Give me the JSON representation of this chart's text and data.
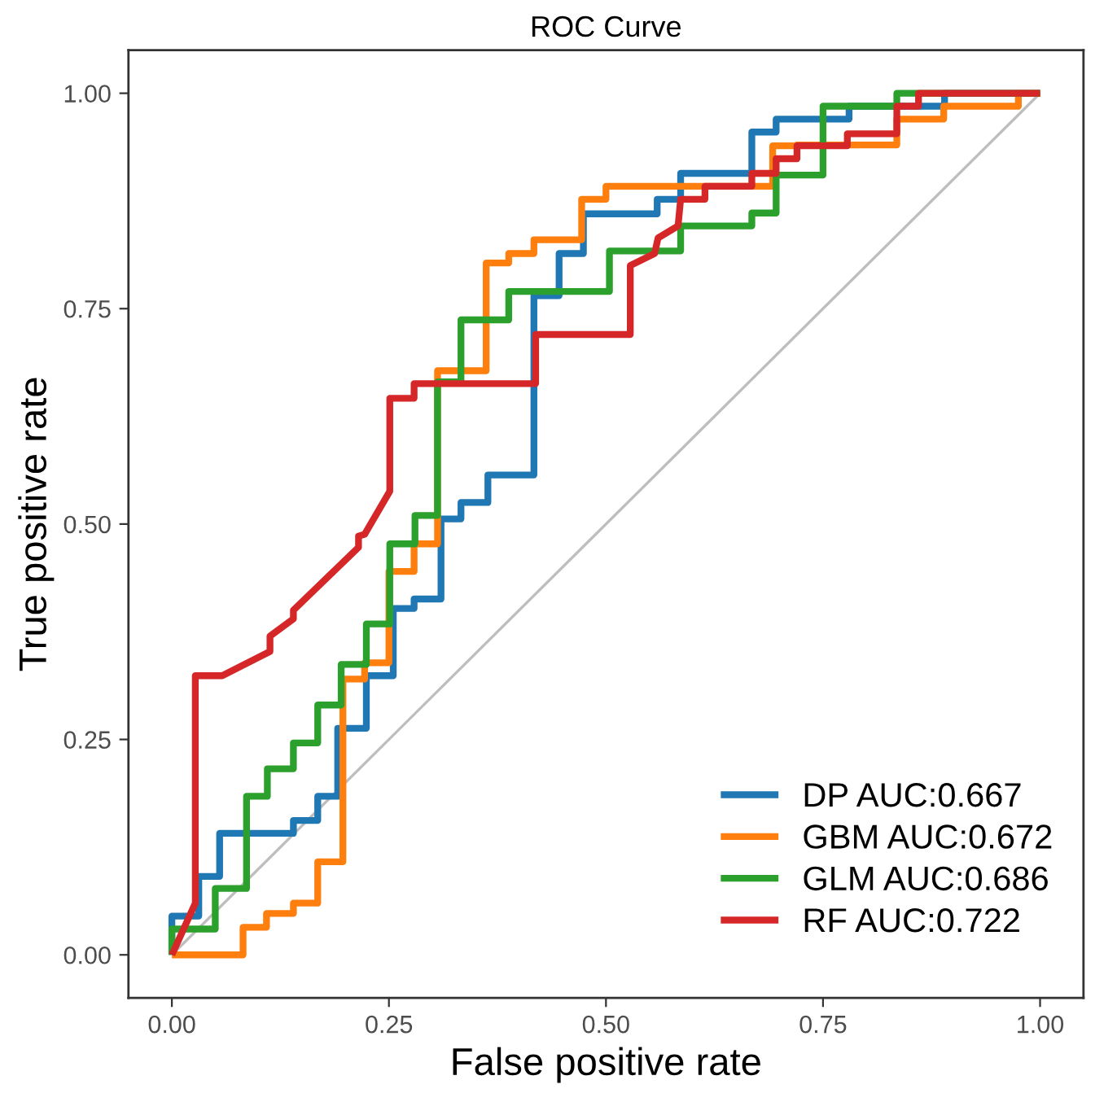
{
  "chart_data": {
    "type": "line",
    "title": "ROC Curve",
    "xlabel": "False positive rate",
    "ylabel": "True positive rate",
    "xlim": [
      -0.05,
      1.05
    ],
    "ylim": [
      -0.05,
      1.05
    ],
    "xticks": [
      {
        "value": 0,
        "label": "0.00"
      },
      {
        "value": 0.25,
        "label": "0.25"
      },
      {
        "value": 0.5,
        "label": "0.50"
      },
      {
        "value": 0.75,
        "label": "0.75"
      },
      {
        "value": 1,
        "label": "1.00"
      }
    ],
    "yticks": [
      {
        "value": 0,
        "label": "0.00"
      },
      {
        "value": 0.25,
        "label": "0.25"
      },
      {
        "value": 0.5,
        "label": "0.50"
      },
      {
        "value": 0.75,
        "label": "0.75"
      },
      {
        "value": 1,
        "label": "1.00"
      }
    ],
    "grid": false,
    "legend": "bottom right",
    "marker": "none",
    "line_style": "solid",
    "series": [
      {
        "color": "#bebebe",
        "x": [
          0,
          1
        ],
        "values": [
          0,
          1
        ]
      },
      {
        "name": "DP AUC:0.667",
        "color": "#1f77b4",
        "x": [
          0,
          0,
          0.031,
          0.031,
          0.055,
          0.055,
          0.14,
          0.14,
          0.168,
          0.168,
          0.191,
          0.191,
          0.224,
          0.224,
          0.255,
          0.255,
          0.279,
          0.279,
          0.31,
          0.31,
          0.333,
          0.333,
          0.364,
          0.364,
          0.417,
          0.417,
          0.446,
          0.446,
          0.474,
          0.474,
          0.559,
          0.559,
          0.586,
          0.586,
          0.668,
          0.668,
          0.696,
          0.696,
          0.78,
          0.78,
          0.89,
          0.89,
          1
        ],
        "values": [
          0,
          0.045,
          0.045,
          0.091,
          0.091,
          0.141,
          0.141,
          0.156,
          0.156,
          0.184,
          0.184,
          0.263,
          0.263,
          0.324,
          0.324,
          0.402,
          0.402,
          0.413,
          0.413,
          0.506,
          0.506,
          0.525,
          0.525,
          0.557,
          0.557,
          0.765,
          0.765,
          0.814,
          0.814,
          0.86,
          0.86,
          0.877,
          0.877,
          0.907,
          0.907,
          0.955,
          0.955,
          0.97,
          0.97,
          0.985,
          0.985,
          1,
          1
        ]
      },
      {
        "name": "GBM AUC:0.672",
        "color": "#ff7f0e",
        "x": [
          0,
          0.082,
          0.082,
          0.109,
          0.109,
          0.14,
          0.14,
          0.168,
          0.168,
          0.197,
          0.197,
          0.222,
          0.222,
          0.25,
          0.25,
          0.279,
          0.279,
          0.306,
          0.306,
          0.362,
          0.362,
          0.388,
          0.388,
          0.417,
          0.417,
          0.472,
          0.472,
          0.5,
          0.5,
          0.692,
          0.692,
          0.72,
          0.72,
          0.835,
          0.835,
          0.889,
          0.889,
          0.975,
          0.975,
          1
        ],
        "values": [
          0,
          0,
          0.032,
          0.032,
          0.048,
          0.048,
          0.06,
          0.06,
          0.108,
          0.108,
          0.32,
          0.32,
          0.339,
          0.339,
          0.445,
          0.445,
          0.477,
          0.477,
          0.678,
          0.678,
          0.803,
          0.803,
          0.814,
          0.814,
          0.83,
          0.83,
          0.877,
          0.877,
          0.892,
          0.892,
          0.939,
          0.939,
          0.94,
          0.94,
          0.97,
          0.97,
          0.985,
          0.985,
          1,
          1
        ]
      },
      {
        "name": "GLM AUC:0.686",
        "color": "#2ca02c",
        "x": [
          0,
          0,
          0.05,
          0.05,
          0.086,
          0.086,
          0.11,
          0.11,
          0.14,
          0.14,
          0.168,
          0.168,
          0.195,
          0.195,
          0.224,
          0.224,
          0.251,
          0.251,
          0.28,
          0.28,
          0.306,
          0.306,
          0.333,
          0.333,
          0.388,
          0.388,
          0.504,
          0.504,
          0.586,
          0.586,
          0.668,
          0.668,
          0.696,
          0.696,
          0.75,
          0.75,
          0.835,
          0.835,
          1
        ],
        "values": [
          0,
          0.03,
          0.03,
          0.077,
          0.077,
          0.184,
          0.184,
          0.216,
          0.216,
          0.246,
          0.246,
          0.29,
          0.29,
          0.337,
          0.337,
          0.384,
          0.384,
          0.477,
          0.477,
          0.51,
          0.51,
          0.665,
          0.665,
          0.737,
          0.737,
          0.77,
          0.77,
          0.817,
          0.817,
          0.846,
          0.846,
          0.861,
          0.861,
          0.905,
          0.905,
          0.985,
          0.985,
          1,
          1
        ]
      },
      {
        "name": "RF AUC:0.722",
        "color": "#d62728",
        "x": [
          0,
          0.027,
          0.027,
          0.058,
          0.113,
          0.113,
          0.14,
          0.14,
          0.215,
          0.215,
          0.222,
          0.251,
          0.251,
          0.279,
          0.279,
          0.419,
          0.419,
          0.528,
          0.528,
          0.556,
          0.56,
          0.583,
          0.586,
          0.614,
          0.614,
          0.668,
          0.668,
          0.696,
          0.696,
          0.72,
          0.72,
          0.778,
          0.778,
          0.835,
          0.835,
          0.86,
          0.86,
          1
        ],
        "values": [
          0,
          0.06,
          0.324,
          0.324,
          0.352,
          0.37,
          0.39,
          0.4,
          0.473,
          0.486,
          0.488,
          0.538,
          0.646,
          0.646,
          0.663,
          0.663,
          0.72,
          0.72,
          0.8,
          0.814,
          0.832,
          0.846,
          0.877,
          0.877,
          0.892,
          0.892,
          0.907,
          0.907,
          0.924,
          0.924,
          0.939,
          0.939,
          0.953,
          0.953,
          0.985,
          0.985,
          1,
          1
        ]
      }
    ]
  }
}
